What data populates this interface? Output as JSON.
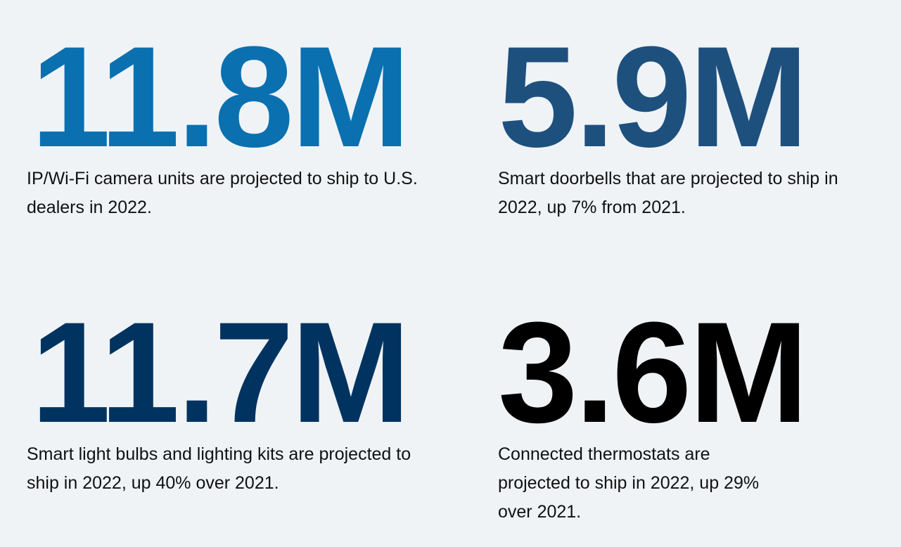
{
  "stats": [
    {
      "value": "11.8M",
      "description": "IP/Wi-Fi camera units are projected to ship to U.S. dealers in 2022.",
      "color": "#0a70b0"
    },
    {
      "value": "5.9M",
      "description": "Smart doorbells that are projected to ship in 2022, up 7% from 2021.",
      "color": "#1e507e"
    },
    {
      "value": "11.7M",
      "description": "Smart light bulbs and lighting kits are projected to ship in 2022, up 40% over 2021.",
      "color": "#003360"
    },
    {
      "value": "3.6M",
      "description": "Connected thermostats are projected to ship in 2022, up 29% over 2021.",
      "color": "#000000"
    }
  ]
}
